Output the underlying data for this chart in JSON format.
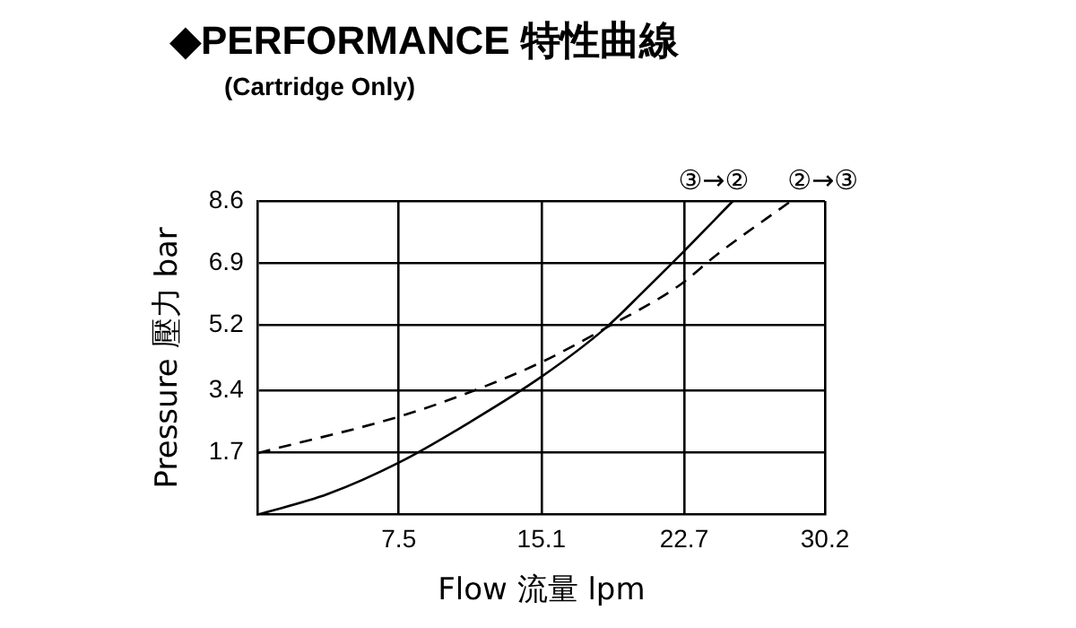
{
  "chart_data": {
    "type": "line",
    "title": "◆PERFORMANCE 特性曲線",
    "subtitle": "(Cartridge Only)",
    "xlabel": "Flow 流量 lpm",
    "ylabel": "Pressure 壓力 bar",
    "xlim": [
      0,
      30.2
    ],
    "xticks": [
      7.5,
      15.1,
      22.7,
      30.2
    ],
    "ylim": [
      0,
      8.6
    ],
    "yticks": [
      1.7,
      3.4,
      5.2,
      6.9,
      8.6
    ],
    "grid": true,
    "marker": "none",
    "series": [
      {
        "name": "③→②",
        "color": "#000000",
        "line_style": "solid",
        "x": [
          0,
          3.7,
          7.6,
          11.4,
          15.1,
          18.5,
          20.5,
          22.4,
          25.3
        ],
        "values": [
          0,
          0.56,
          1.45,
          2.57,
          3.78,
          5.11,
          6.1,
          7.07,
          8.6
        ]
      },
      {
        "name": "②→③",
        "color": "#000000",
        "line_style": "dashed",
        "x": [
          0,
          7.6,
          11.4,
          15.1,
          18.5,
          22.4,
          24.5,
          28.4
        ],
        "values": [
          1.69,
          2.7,
          3.38,
          4.18,
          5.11,
          6.27,
          7.15,
          8.6
        ]
      }
    ]
  }
}
